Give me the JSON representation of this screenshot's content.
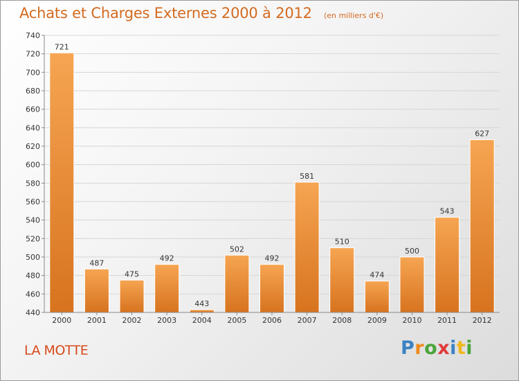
{
  "header": {
    "title": "Achats et Charges Externes 2000 à 2012",
    "subtitle": "(en milliers d'€)"
  },
  "footer": {
    "place": "LA MOTTE",
    "brand": "Proxiti"
  },
  "colors": {
    "bar_light": "#f6a552",
    "bar_dark": "#d7731f",
    "title": "#d46a1f"
  },
  "chart_data": {
    "type": "bar",
    "categories": [
      "2000",
      "2001",
      "2002",
      "2003",
      "2004",
      "2005",
      "2006",
      "2007",
      "2008",
      "2009",
      "2010",
      "2011",
      "2012"
    ],
    "values": [
      721,
      487,
      475,
      492,
      443,
      502,
      492,
      581,
      510,
      474,
      500,
      543,
      627
    ],
    "title": "Achats et Charges Externes 2000 à 2012",
    "subtitle": "(en milliers d'€)",
    "xlabel": "",
    "ylabel": "",
    "ylim": [
      440,
      740
    ],
    "yticks": [
      440,
      460,
      480,
      500,
      520,
      540,
      560,
      580,
      600,
      620,
      640,
      660,
      680,
      700,
      720,
      740
    ],
    "grid": true,
    "legend": "none"
  }
}
